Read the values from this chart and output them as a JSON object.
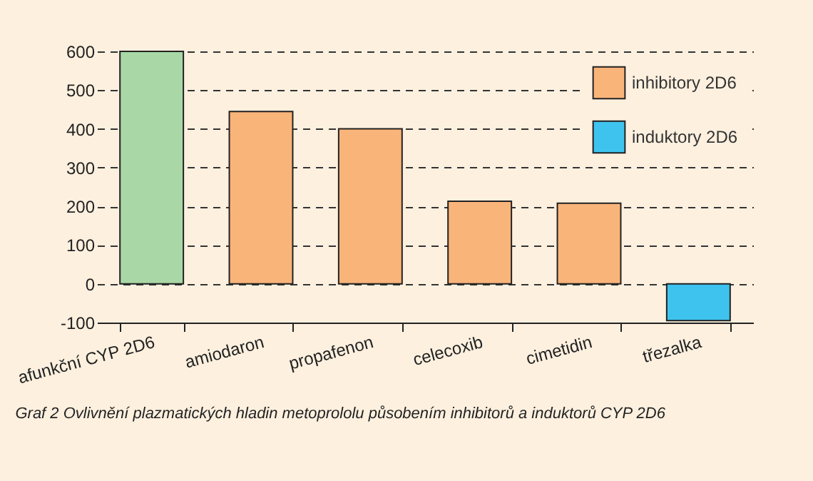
{
  "chart_data": {
    "type": "bar",
    "categories": [
      "afunkční CYP 2D6",
      "amiodaron",
      "propafenon",
      "celecoxib",
      "cimetidin",
      "třezalka"
    ],
    "series": [
      {
        "color": "#a9d8a6",
        "values": [
          600,
          null,
          null,
          null,
          null,
          null
        ]
      },
      {
        "name": "inhibitory 2D6",
        "color": "#f9b47a",
        "values": [
          null,
          445,
          400,
          213,
          208,
          null
        ]
      },
      {
        "name": "induktory 2D6",
        "color": "#3ec3ee",
        "values": [
          null,
          null,
          null,
          null,
          null,
          -95
        ]
      }
    ],
    "ylim": [
      -100,
      600
    ],
    "yticks": [
      -100,
      0,
      100,
      200,
      300,
      400,
      500,
      600
    ],
    "grid": "y",
    "legend": "top right",
    "annotations": [
      "Graf 2  Ovlivnění plazmatických hladin metoprololu působením inhibitorů a induktorů CYP 2D6"
    ]
  }
}
